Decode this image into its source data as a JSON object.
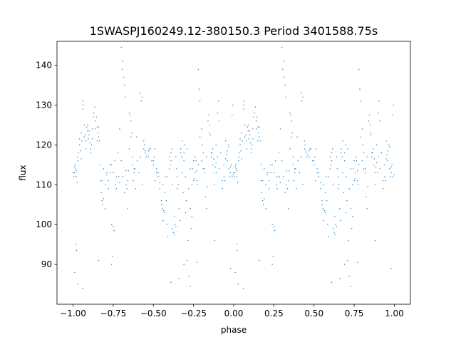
{
  "chart_data": {
    "type": "scatter",
    "title": "1SWASPJ160249.12-380150.3 Period 3401588.75s",
    "xlabel": "phase",
    "ylabel": "flux",
    "xlim": [
      -1.1,
      1.1
    ],
    "ylim": [
      80,
      146
    ],
    "xticks": [
      -1.0,
      -0.75,
      -0.5,
      -0.25,
      0.0,
      0.25,
      0.5,
      0.75,
      1.0
    ],
    "xtick_labels": [
      "−1.00",
      "−0.75",
      "−0.50",
      "−0.25",
      "0.00",
      "0.25",
      "0.50",
      "0.75",
      "1.00"
    ],
    "yticks": [
      90,
      100,
      110,
      120,
      130,
      140
    ],
    "ytick_labels": [
      "90",
      "100",
      "110",
      "120",
      "130",
      "140"
    ],
    "grid": false,
    "marker_color": "#1f77b4",
    "folded": true,
    "series": [
      {
        "points": [
          [
            0.0,
            113.0
          ],
          [
            0.01,
            114.5
          ],
          [
            0.02,
            112.0
          ],
          [
            0.03,
            117.0
          ],
          [
            0.04,
            121.5
          ],
          [
            0.05,
            123.0
          ],
          [
            0.06,
            129.0
          ],
          [
            0.07,
            122.0
          ],
          [
            0.08,
            119.0
          ],
          [
            0.09,
            123.5
          ],
          [
            0.1,
            122.5
          ],
          [
            0.11,
            119.0
          ],
          [
            0.12,
            124.0
          ],
          [
            0.13,
            128.0
          ],
          [
            0.14,
            126.0
          ],
          [
            0.15,
            121.0
          ],
          [
            0.16,
            124.5
          ],
          [
            0.17,
            115.0
          ],
          [
            0.18,
            111.0
          ],
          [
            0.19,
            114.0
          ],
          [
            0.2,
            110.0
          ],
          [
            0.21,
            112.5
          ],
          [
            0.22,
            109.0
          ],
          [
            0.23,
            113.0
          ],
          [
            0.24,
            100.0
          ],
          [
            0.25,
            113.0
          ],
          [
            0.26,
            116.0
          ],
          [
            0.27,
            112.0
          ],
          [
            0.28,
            118.0
          ],
          [
            0.29,
            124.0
          ],
          [
            0.3,
            116.0
          ],
          [
            0.31,
            112.0
          ],
          [
            0.32,
            108.0
          ],
          [
            0.33,
            113.5
          ],
          [
            0.34,
            104.0
          ],
          [
            0.35,
            119.0
          ],
          [
            0.36,
            122.0
          ],
          [
            0.37,
            117.0
          ],
          [
            0.38,
            114.0
          ],
          [
            0.39,
            109.0
          ],
          [
            0.4,
            116.0
          ],
          [
            0.41,
            113.0
          ],
          [
            0.42,
            117.0
          ],
          [
            0.43,
            110.0
          ],
          [
            0.44,
            119.0
          ],
          [
            0.45,
            118.0
          ],
          [
            0.46,
            117.5
          ],
          [
            0.47,
            117.0
          ],
          [
            0.48,
            119.0
          ],
          [
            0.49,
            116.0
          ],
          [
            0.5,
            115.0
          ],
          [
            0.51,
            111.0
          ],
          [
            0.52,
            113.0
          ],
          [
            0.53,
            112.0
          ],
          [
            0.54,
            109.0
          ],
          [
            0.55,
            105.0
          ],
          [
            0.56,
            110.0
          ],
          [
            0.57,
            103.0
          ],
          [
            0.58,
            106.0
          ],
          [
            0.59,
            112.0
          ],
          [
            0.6,
            114.0
          ],
          [
            0.61,
            116.0
          ],
          [
            0.62,
            110.0
          ],
          [
            0.63,
            102.0
          ],
          [
            0.64,
            117.0
          ],
          [
            0.65,
            109.0
          ],
          [
            0.66,
            104.0
          ],
          [
            0.67,
            118.0
          ],
          [
            0.68,
            121.0
          ],
          [
            0.69,
            116.0
          ],
          [
            0.7,
            112.0
          ],
          [
            0.71,
            119.0
          ],
          [
            0.72,
            109.0
          ],
          [
            0.73,
            114.0
          ],
          [
            0.74,
            110.0
          ],
          [
            0.75,
            116.0
          ],
          [
            0.76,
            113.0
          ],
          [
            0.77,
            111.0
          ],
          [
            0.78,
            115.0
          ],
          [
            0.79,
            122.0
          ],
          [
            0.8,
            116.0
          ],
          [
            0.81,
            118.0
          ],
          [
            0.82,
            114.0
          ],
          [
            0.83,
            117.0
          ],
          [
            0.84,
            126.0
          ],
          [
            0.85,
            123.0
          ],
          [
            0.86,
            118.0
          ],
          [
            0.87,
            115.0
          ],
          [
            0.88,
            113.0
          ],
          [
            0.89,
            120.0
          ],
          [
            0.9,
            117.0
          ],
          [
            0.91,
            114.0
          ],
          [
            0.92,
            118.0
          ],
          [
            0.93,
            111.0
          ],
          [
            0.94,
            115.0
          ],
          [
            0.95,
            121.0
          ],
          [
            0.96,
            116.0
          ],
          [
            0.97,
            114.0
          ],
          [
            0.98,
            113.0
          ],
          [
            0.99,
            112.0
          ],
          [
            0.062,
            131.0
          ],
          [
            0.064,
            130.0
          ],
          [
            0.125,
            127.0
          ],
          [
            0.135,
            129.5
          ],
          [
            0.3,
            144.5
          ],
          [
            0.31,
            141.0
          ],
          [
            0.305,
            139.0
          ],
          [
            0.315,
            137.0
          ],
          [
            0.32,
            135.0
          ],
          [
            0.325,
            132.0
          ],
          [
            0.35,
            128.0
          ],
          [
            0.355,
            127.5
          ],
          [
            0.36,
            126.0
          ],
          [
            0.365,
            123.0
          ],
          [
            0.42,
            133.0
          ],
          [
            0.425,
            131.0
          ],
          [
            0.43,
            132.0
          ],
          [
            0.47,
            118.5
          ],
          [
            0.475,
            119.0
          ],
          [
            0.395,
            122.0
          ],
          [
            0.55,
            106.0
          ],
          [
            0.555,
            104.0
          ],
          [
            0.56,
            101.0
          ],
          [
            0.565,
            103.5
          ],
          [
            0.62,
            99.0
          ],
          [
            0.625,
            98.0
          ],
          [
            0.63,
            97.5
          ],
          [
            0.635,
            100.0
          ],
          [
            0.64,
            99.5
          ],
          [
            0.585,
            100.0
          ],
          [
            0.59,
            97.0
          ],
          [
            0.66,
            86.5
          ],
          [
            0.71,
            91.0
          ],
          [
            0.715,
            96.0
          ],
          [
            0.72,
            87.0
          ],
          [
            0.73,
            104.0
          ],
          [
            0.735,
            99.0
          ],
          [
            0.74,
            102.0
          ],
          [
            0.78,
            139.0
          ],
          [
            0.785,
            134.0
          ],
          [
            0.79,
            131.0
          ],
          [
            0.8,
            124.0
          ],
          [
            0.805,
            120.0
          ],
          [
            0.81,
            114.0
          ],
          [
            0.845,
            127.5
          ],
          [
            0.85,
            125.0
          ],
          [
            0.855,
            122.5
          ],
          [
            0.9,
            128.0
          ],
          [
            0.905,
            131.0
          ],
          [
            0.91,
            126.0
          ],
          [
            0.92,
            118.0
          ],
          [
            0.93,
            109.0
          ],
          [
            0.94,
            112.0
          ],
          [
            0.945,
            111.0
          ],
          [
            0.96,
            118.5
          ],
          [
            0.965,
            120.0
          ],
          [
            0.97,
            119.5
          ],
          [
            0.98,
            114.5
          ],
          [
            0.985,
            115.0
          ],
          [
            0.99,
            127.5
          ],
          [
            0.995,
            130.0
          ],
          [
            0.997,
            112.5
          ],
          [
            0.17,
            111.0
          ],
          [
            0.175,
            108.0
          ],
          [
            0.18,
            106.0
          ],
          [
            0.185,
            105.0
          ],
          [
            0.19,
            106.5
          ],
          [
            0.2,
            104.0
          ],
          [
            0.21,
            113.0
          ],
          [
            0.22,
            111.0
          ],
          [
            0.23,
            115.0
          ],
          [
            0.24,
            115.0
          ],
          [
            0.25,
            99.5
          ],
          [
            0.255,
            98.5
          ],
          [
            0.265,
            110.0
          ],
          [
            0.27,
            109.0
          ],
          [
            0.285,
            112.0
          ],
          [
            0.29,
            110.5
          ],
          [
            0.33,
            110.0
          ],
          [
            0.335,
            109.0
          ],
          [
            0.34,
            111.0
          ],
          [
            0.345,
            113.5
          ],
          [
            0.37,
            115.0
          ],
          [
            0.375,
            111.0
          ],
          [
            0.38,
            113.0
          ],
          [
            0.385,
            114.0
          ],
          [
            0.44,
            121.0
          ],
          [
            0.445,
            120.0
          ],
          [
            0.45,
            118.5
          ],
          [
            0.455,
            117.0
          ],
          [
            0.5,
            116.0
          ],
          [
            0.505,
            117.0
          ],
          [
            0.51,
            119.0
          ],
          [
            0.52,
            114.0
          ],
          [
            0.53,
            113.0
          ],
          [
            0.54,
            110.5
          ],
          [
            0.57,
            108.0
          ],
          [
            0.575,
            112.0
          ],
          [
            0.6,
            117.0
          ],
          [
            0.605,
            115.0
          ],
          [
            0.61,
            118.0
          ],
          [
            0.615,
            119.0
          ],
          [
            0.645,
            114.0
          ],
          [
            0.65,
            112.0
          ],
          [
            0.655,
            110.0
          ],
          [
            0.665,
            101.0
          ],
          [
            0.67,
            119.0
          ],
          [
            0.675,
            117.0
          ],
          [
            0.68,
            113.0
          ],
          [
            0.685,
            108.0
          ],
          [
            0.69,
            118.0
          ],
          [
            0.695,
            120.0
          ],
          [
            0.7,
            103.0
          ],
          [
            0.705,
            106.0
          ],
          [
            0.745,
            114.0
          ],
          [
            0.75,
            111.0
          ],
          [
            0.755,
            111.5
          ],
          [
            0.76,
            117.0
          ],
          [
            0.765,
            116.0
          ],
          [
            0.77,
            113.5
          ],
          [
            0.775,
            110.0
          ],
          [
            0.82,
            113.0
          ],
          [
            0.825,
            107.0
          ],
          [
            0.83,
            104.0
          ],
          [
            0.835,
            109.5
          ],
          [
            0.86,
            117.0
          ],
          [
            0.865,
            118.0
          ],
          [
            0.87,
            119.0
          ],
          [
            0.875,
            116.5
          ],
          [
            0.88,
            110.0
          ],
          [
            0.885,
            114.5
          ],
          [
            0.89,
            115.5
          ],
          [
            0.895,
            113.0
          ],
          [
            0.95,
            116.5
          ],
          [
            0.955,
            117.5
          ],
          [
            0.975,
            112.0
          ],
          [
            0.02,
            113.5
          ],
          [
            0.03,
            116.0
          ],
          [
            0.04,
            120.0
          ],
          [
            0.045,
            118.5
          ],
          [
            0.05,
            116.5
          ],
          [
            0.055,
            121.0
          ],
          [
            0.07,
            125.0
          ],
          [
            0.075,
            122.5
          ],
          [
            0.08,
            121.0
          ],
          [
            0.085,
            124.5
          ],
          [
            0.09,
            125.0
          ],
          [
            0.095,
            121.5
          ],
          [
            0.1,
            123.5
          ],
          [
            0.105,
            120.5
          ],
          [
            0.11,
            118.0
          ],
          [
            0.115,
            120.0
          ],
          [
            0.12,
            121.5
          ],
          [
            0.14,
            124.0
          ],
          [
            0.145,
            127.0
          ],
          [
            0.15,
            124.5
          ],
          [
            0.155,
            123.0
          ],
          [
            0.16,
            122.0
          ],
          [
            0.165,
            121.0
          ],
          [
            0.005,
            112.0
          ],
          [
            0.008,
            113.0
          ],
          [
            0.012,
            115.0
          ],
          [
            0.015,
            114.0
          ],
          [
            0.025,
            110.5
          ],
          [
            0.035,
            118.0
          ],
          [
            0.018,
            95.0
          ],
          [
            0.022,
            93.5
          ],
          [
            0.01,
            88.0
          ],
          [
            0.028,
            85.0
          ],
          [
            0.06,
            84.0
          ],
          [
            0.24,
            90.0
          ],
          [
            0.245,
            92.0
          ],
          [
            0.16,
            91.0
          ],
          [
            0.61,
            85.5
          ],
          [
            0.69,
            90.0
          ],
          [
            0.73,
            84.5
          ],
          [
            0.77,
            90.5
          ],
          [
            0.98,
            89.0
          ],
          [
            0.88,
            96.0
          ]
        ]
      }
    ]
  }
}
